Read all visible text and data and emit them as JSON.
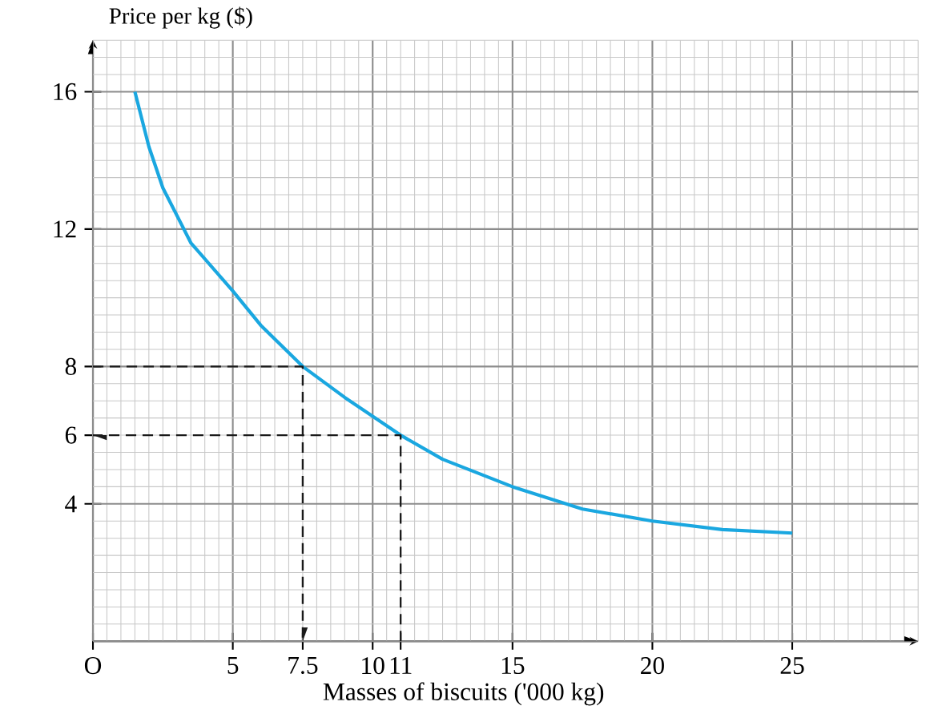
{
  "chart_data": {
    "type": "line",
    "ylabel": "Price per kg ($)",
    "xlabel": "Masses of biscuits ('000 kg)",
    "xlim": [
      0,
      29.5
    ],
    "ylim": [
      0,
      17.5
    ],
    "xticks": [
      {
        "value": 0,
        "label": "O"
      },
      5,
      7.5,
      10,
      11,
      15,
      20,
      25
    ],
    "yticks": [
      4,
      6,
      8,
      12,
      16
    ],
    "grid": true,
    "series": [
      {
        "color": "#1aa7e0",
        "x": [
          1.5,
          2,
          2.5,
          3.5,
          5,
          6,
          7.5,
          9,
          10,
          11,
          12.5,
          15,
          17.5,
          20,
          22.5,
          25
        ],
        "values": [
          16,
          14.4,
          13.2,
          11.6,
          10.2,
          9.2,
          8,
          7.1,
          6.55,
          6,
          5.3,
          4.5,
          3.85,
          3.5,
          3.25,
          3.15
        ]
      },
      {
        "color": "#1a1a1a",
        "line_style": "dashed",
        "x": [
          0,
          7.5,
          7.5
        ],
        "values": [
          8,
          8,
          0
        ]
      },
      {
        "color": "#1a1a1a",
        "line_style": "dashed",
        "x": [
          11,
          11,
          0
        ],
        "values": [
          0,
          6,
          6
        ]
      }
    ]
  }
}
